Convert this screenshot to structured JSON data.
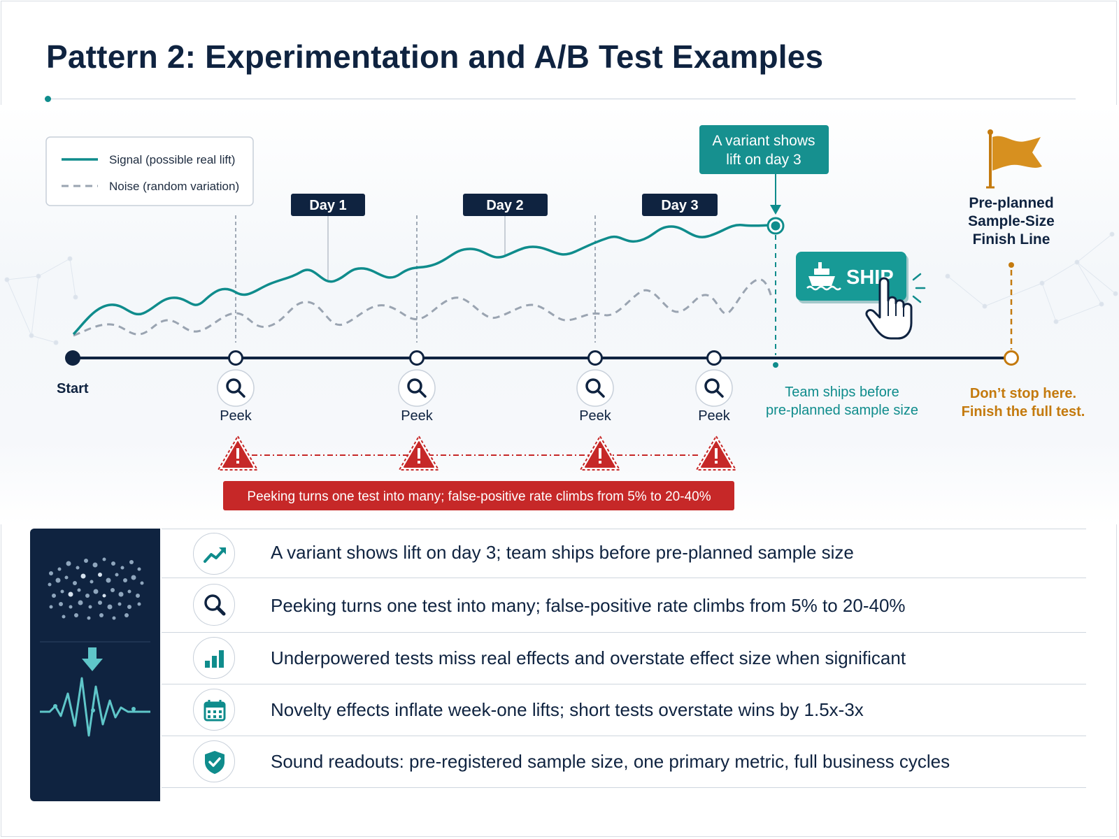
{
  "title": "Pattern 2: Experimentation and A/B Test Examples",
  "legend": {
    "signal_label": "Signal (possible real lift)",
    "noise_label": "Noise (random variation)"
  },
  "day_labels": [
    "Day 1",
    "Day 2",
    "Day 3"
  ],
  "callout": {
    "line1": "A variant shows",
    "line2": "lift on day 3"
  },
  "timeline": {
    "start_label": "Start",
    "peek_label": "Peek",
    "peek_count": 4
  },
  "ship": {
    "button_label": "SHIP",
    "caption_line1": "Team ships before",
    "caption_line2": "pre-planned sample size"
  },
  "finish": {
    "line1": "Pre-planned",
    "line2": "Sample-Size",
    "line3": "Finish Line",
    "note_line1": "Don’t stop here.",
    "note_line2": "Finish the full test."
  },
  "warning_banner": "Peeking turns one test into many; false-positive rate climbs from 5% to 20-40%",
  "colors": {
    "navy": "#0f2340",
    "teal": "#0f8c8c",
    "red": "#c62828",
    "orange": "#c47a0e",
    "noise_gray": "#9aa4b1"
  },
  "findings": [
    {
      "icon": "trending-up-icon",
      "text": "A variant shows lift on day 3; team ships before pre-planned sample size"
    },
    {
      "icon": "magnifier-icon",
      "text": "Peeking turns one test into many; false-positive rate climbs from 5% to 20-40%"
    },
    {
      "icon": "bar-chart-icon",
      "text": "Underpowered tests miss real effects and overstate effect size when significant"
    },
    {
      "icon": "calendar-icon",
      "text": "Novelty effects inflate week-one lifts; short tests overstate wins by 1.5x-3x"
    },
    {
      "icon": "shield-check-icon",
      "text": "Sound readouts: pre-registered sample size, one primary metric, full business cycles"
    }
  ]
}
